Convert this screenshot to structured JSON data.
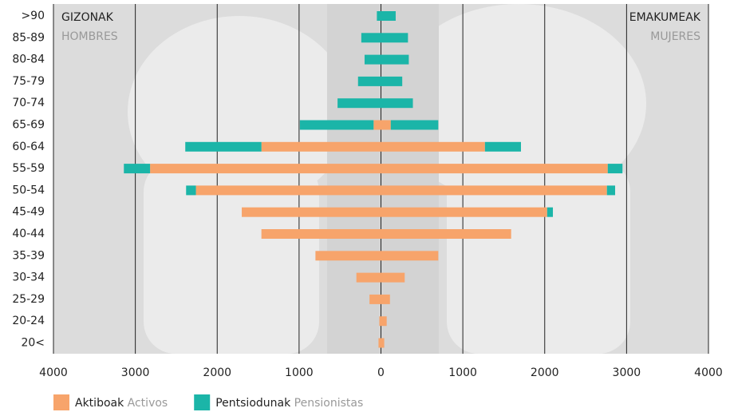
{
  "chart_data": {
    "type": "pyramid",
    "left_title": "GIZONAK",
    "left_subtitle": "HOMBRES",
    "right_title": "EMAKUMEAK",
    "right_subtitle": "MUJERES",
    "categories": [
      ">90",
      "85-89",
      "80-84",
      "75-79",
      "70-74",
      "65-69",
      "60-64",
      "55-59",
      "50-54",
      "45-49",
      "40-44",
      "35-39",
      "30-34",
      "25-29",
      "20-24",
      "20<"
    ],
    "series": [
      {
        "name": "Aktiboak",
        "name_es": "Activos",
        "color": "#f7a46b",
        "men": [
          0,
          0,
          0,
          0,
          0,
          -90,
          -1460,
          -2820,
          -2260,
          -1700,
          -1460,
          -800,
          -300,
          -140,
          -20,
          -30
        ],
        "women": [
          0,
          0,
          0,
          0,
          0,
          120,
          1270,
          2770,
          2760,
          2030,
          1590,
          700,
          290,
          110,
          70,
          40
        ]
      },
      {
        "name": "Pentsiodunak",
        "name_es": "Pensionistas",
        "color": "#1bb5a8",
        "men": [
          -50,
          -240,
          -200,
          -280,
          -530,
          -900,
          -930,
          -320,
          -120,
          0,
          0,
          0,
          0,
          0,
          0,
          0
        ],
        "women": [
          180,
          330,
          340,
          260,
          390,
          580,
          440,
          180,
          100,
          70,
          0,
          0,
          0,
          0,
          0,
          0
        ]
      }
    ],
    "xlim": [
      -4000,
      4000
    ],
    "xticks": [
      {
        "value": -4000,
        "label": "4000"
      },
      {
        "value": -3000,
        "label": "3000"
      },
      {
        "value": -2000,
        "label": "2000"
      },
      {
        "value": -1000,
        "label": "1000"
      },
      0,
      1000,
      2000,
      3000,
      4000
    ],
    "grid": true
  }
}
